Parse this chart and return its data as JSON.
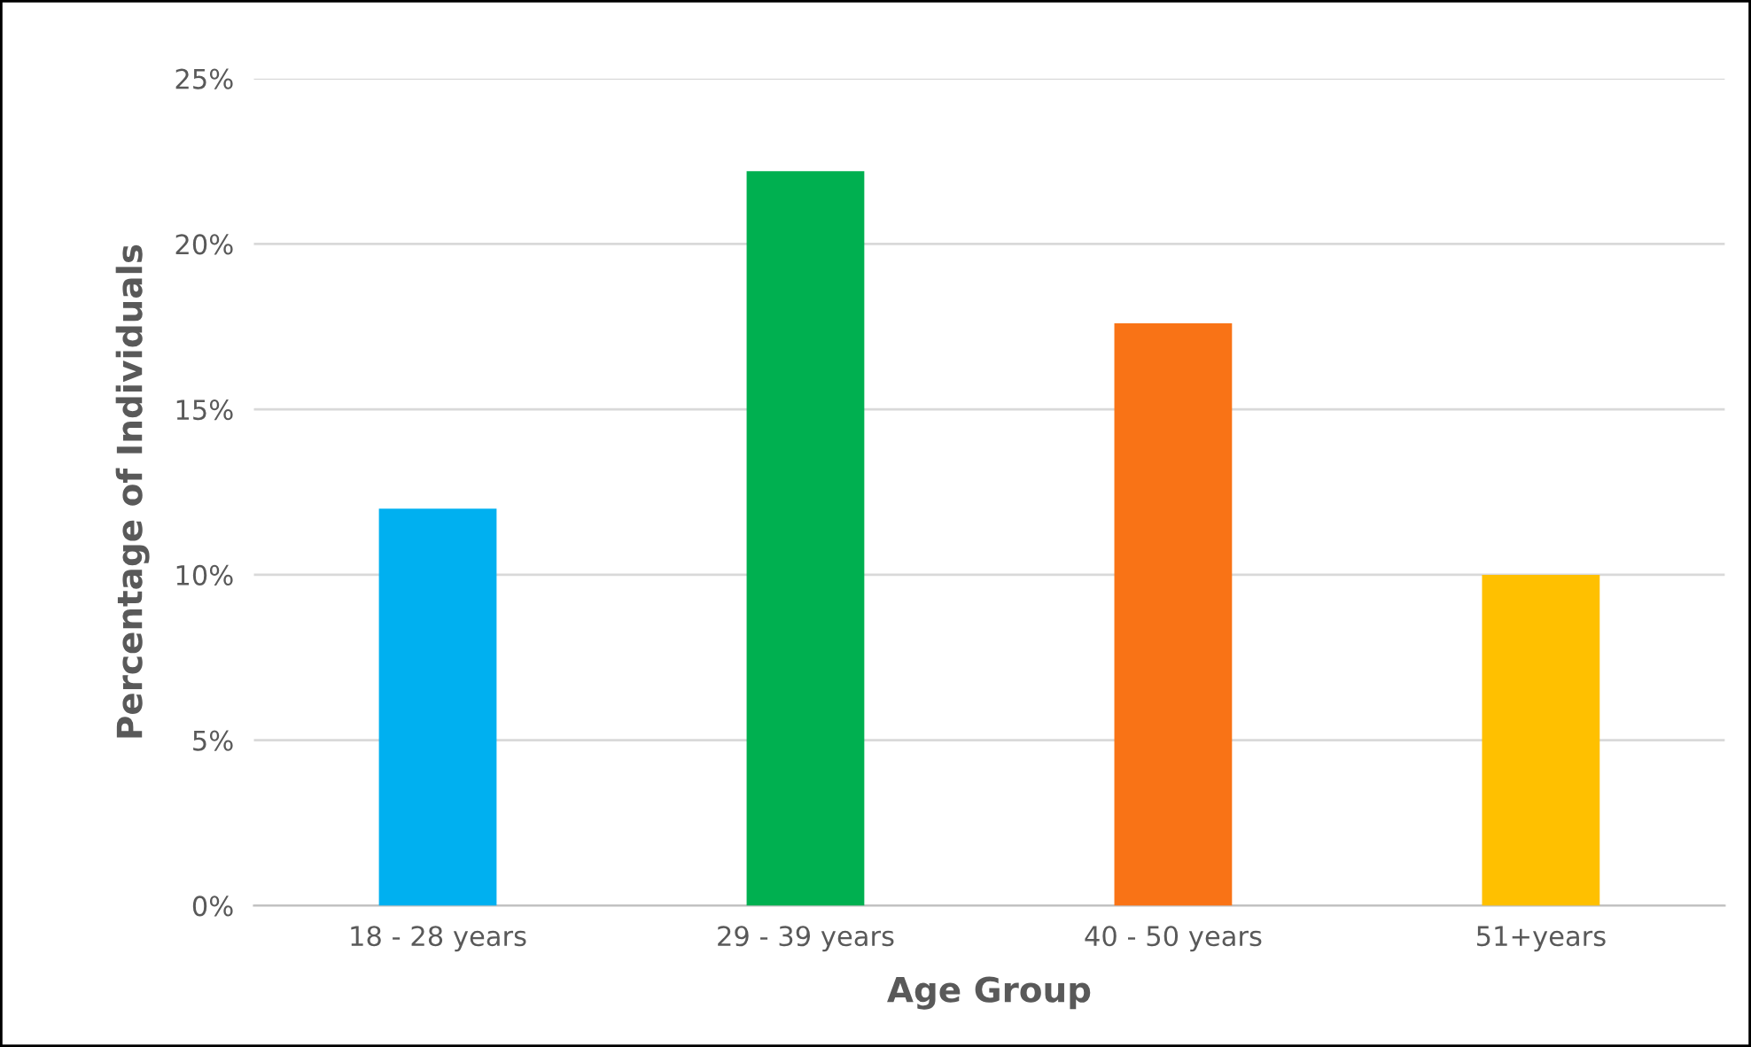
{
  "chart_data": {
    "type": "bar",
    "xlabel": "Age Group",
    "ylabel": "Percentage of Individuals",
    "categories": [
      "18 - 28 years",
      "29 - 39 years",
      "40 - 50 years",
      "51+years"
    ],
    "values": [
      12.0,
      22.2,
      17.6,
      10.0
    ],
    "colors": [
      "#00b0f0",
      "#00b050",
      "#f97316",
      "#ffc000"
    ],
    "ylim": [
      0,
      25
    ],
    "yticks": [
      {
        "value": 0,
        "label": "0%"
      },
      {
        "value": 5,
        "label": "5%"
      },
      {
        "value": 10,
        "label": "10%"
      },
      {
        "value": 15,
        "label": "15%"
      },
      {
        "value": 20,
        "label": "20%"
      },
      {
        "value": 25,
        "label": "25%"
      }
    ],
    "grid": "y"
  }
}
